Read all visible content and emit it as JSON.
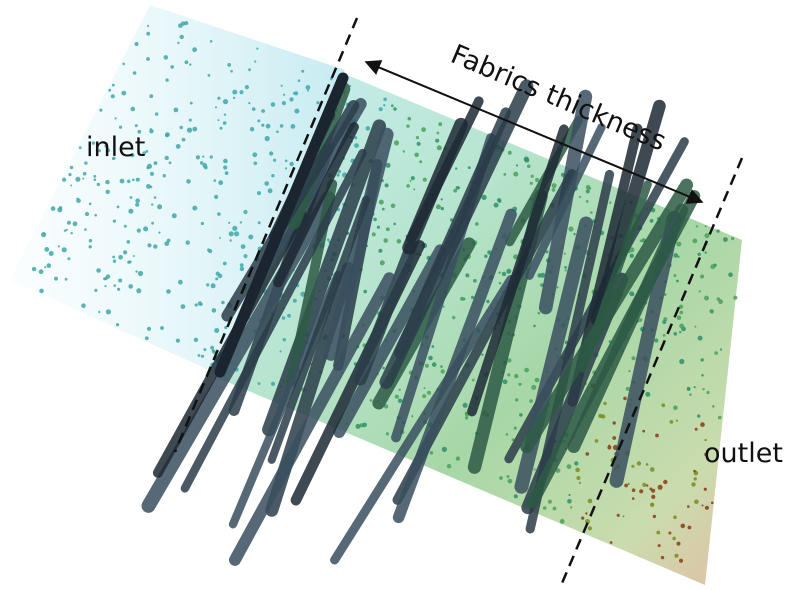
{
  "labels": {
    "inlet": "inlet",
    "outlet": "outlet",
    "thickness": "Fabrics thickness"
  }
}
